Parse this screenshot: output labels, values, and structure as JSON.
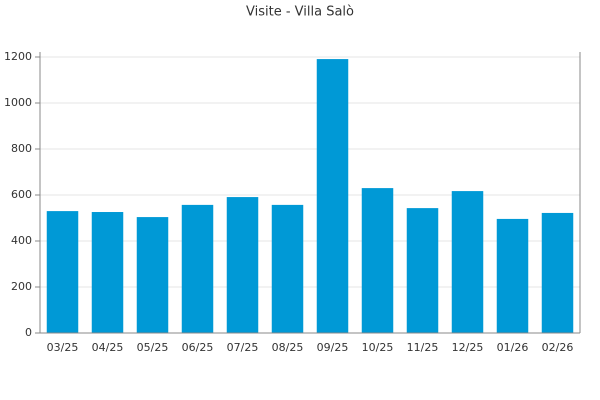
{
  "chart_data": {
    "type": "bar",
    "title": "Visite - Villa Salò",
    "categories": [
      "03/25",
      "04/25",
      "05/25",
      "06/25",
      "07/25",
      "08/25",
      "09/25",
      "10/25",
      "11/25",
      "12/25",
      "01/26",
      "02/26"
    ],
    "values": [
      530,
      526,
      504,
      557,
      591,
      557,
      1191,
      630,
      543,
      617,
      496,
      522
    ],
    "color": "#0099d6",
    "ylim": [
      0,
      1200
    ],
    "yticks": [
      0,
      200,
      400,
      600,
      800,
      1000,
      1200
    ],
    "grid": true
  }
}
